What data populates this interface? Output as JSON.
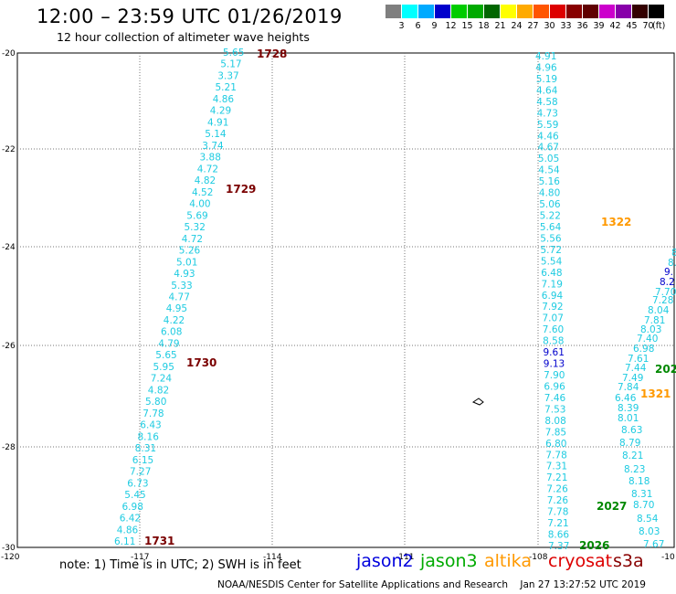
{
  "header": {
    "title": "12:00 – 23:59 UTC 01/26/2019",
    "subtitle": "12 hour collection of altimeter wave heights"
  },
  "legend": {
    "colors": [
      "#7f7f7f",
      "#00ffff",
      "#00aaff",
      "#0000cc",
      "#00cc00",
      "#00aa00",
      "#006600",
      "#ffff00",
      "#ffaa00",
      "#ff5500",
      "#dd0000",
      "#880000",
      "#600000",
      "#cc00cc",
      "#8800aa",
      "#330000",
      "#000000"
    ],
    "labels": [
      "3",
      "6",
      "9",
      "12",
      "15",
      "18",
      "21",
      "24",
      "27",
      "30",
      "33",
      "36",
      "39",
      "42",
      "45",
      "70"
    ],
    "unit": "(ft)"
  },
  "map": {
    "lat_labels": [
      "-20",
      "-22",
      "-24",
      "-26",
      "-28",
      "-30"
    ],
    "lon_labels": [
      "-120",
      "-117",
      "-114",
      "-111",
      "-108",
      "-10"
    ],
    "wave_heights": {
      "track_west": [
        "5.65",
        "5.17",
        "3.37",
        "5.21",
        "4.86",
        "4.29",
        "4.91",
        "5.14",
        "3.74",
        "3.88",
        "4.72",
        "4.82",
        "4.52",
        "4.00",
        "5.69",
        "5.32",
        "4.72",
        "5.26",
        "5.01",
        "4.93",
        "5.33",
        "4.77",
        "4.95",
        "4.22",
        "6.08",
        "4.79",
        "5.65",
        "5.95",
        "7.24",
        "4.82",
        "5.80",
        "7.78",
        "6.43",
        "8.16",
        "8.31",
        "6.15",
        "7.27",
        "6.73",
        "5.45",
        "6.98",
        "6.42",
        "4.86",
        "6.11"
      ],
      "track_east": [
        "4.91",
        "4.96",
        "5.19",
        "4.64",
        "4.58",
        "4.73",
        "5.59",
        "4.46",
        "4.67",
        "5.05",
        "4.54",
        "5.16",
        "4.80",
        "5.06",
        "5.22",
        "5.64",
        "5.56",
        "5.72",
        "5.54",
        "6.48",
        "7.19",
        "6.94",
        "7.92",
        "7.07",
        "7.60",
        "8.58",
        "9.61",
        "9.13",
        "7.90",
        "6.96",
        "7.46",
        "7.53",
        "8.08",
        "7.85",
        "6.80",
        "7.78",
        "7.31",
        "7.21",
        "7.26",
        "7.26",
        "7.78",
        "7.21",
        "8.66",
        "7.37"
      ],
      "track_ne": [
        "8",
        "8.",
        "9.",
        "8.2",
        "7.70",
        "7.28",
        "8.04",
        "7.81",
        "8.03",
        "7.40",
        "6.98",
        "7.61",
        "7.44",
        "7.49",
        "7.84",
        "6.46",
        "8.39",
        "8.01",
        "8.63",
        "8.79",
        "8.21",
        "8.23",
        "8.18",
        "8.31",
        "8.70",
        "8.54",
        "8.03",
        "7.67"
      ]
    },
    "time_labels": {
      "t1728": "1728",
      "t1729": "1729",
      "t1730": "1730",
      "t1731": "1731",
      "t1322": "1322",
      "t1321": "1321",
      "t202": "202",
      "t2027": "2027",
      "t2026": "2026"
    }
  },
  "footer": {
    "note": "note:  1) Time is in UTC;  2) SWH is in feet",
    "satellites": [
      {
        "name": "jason2",
        "color": "#0000dd"
      },
      {
        "name": "jason3",
        "color": "#00aa00"
      },
      {
        "name": "altika",
        "color": "#ff9900"
      },
      {
        "name": "cryosat",
        "color": "#dd0000"
      },
      {
        "name": "s3a",
        "color": "#880000"
      }
    ],
    "credit": "NOAA/NESDIS Center for Satellite Applications and Research",
    "timestamp": "Jan 27 13:27:52 UTC 2019"
  }
}
